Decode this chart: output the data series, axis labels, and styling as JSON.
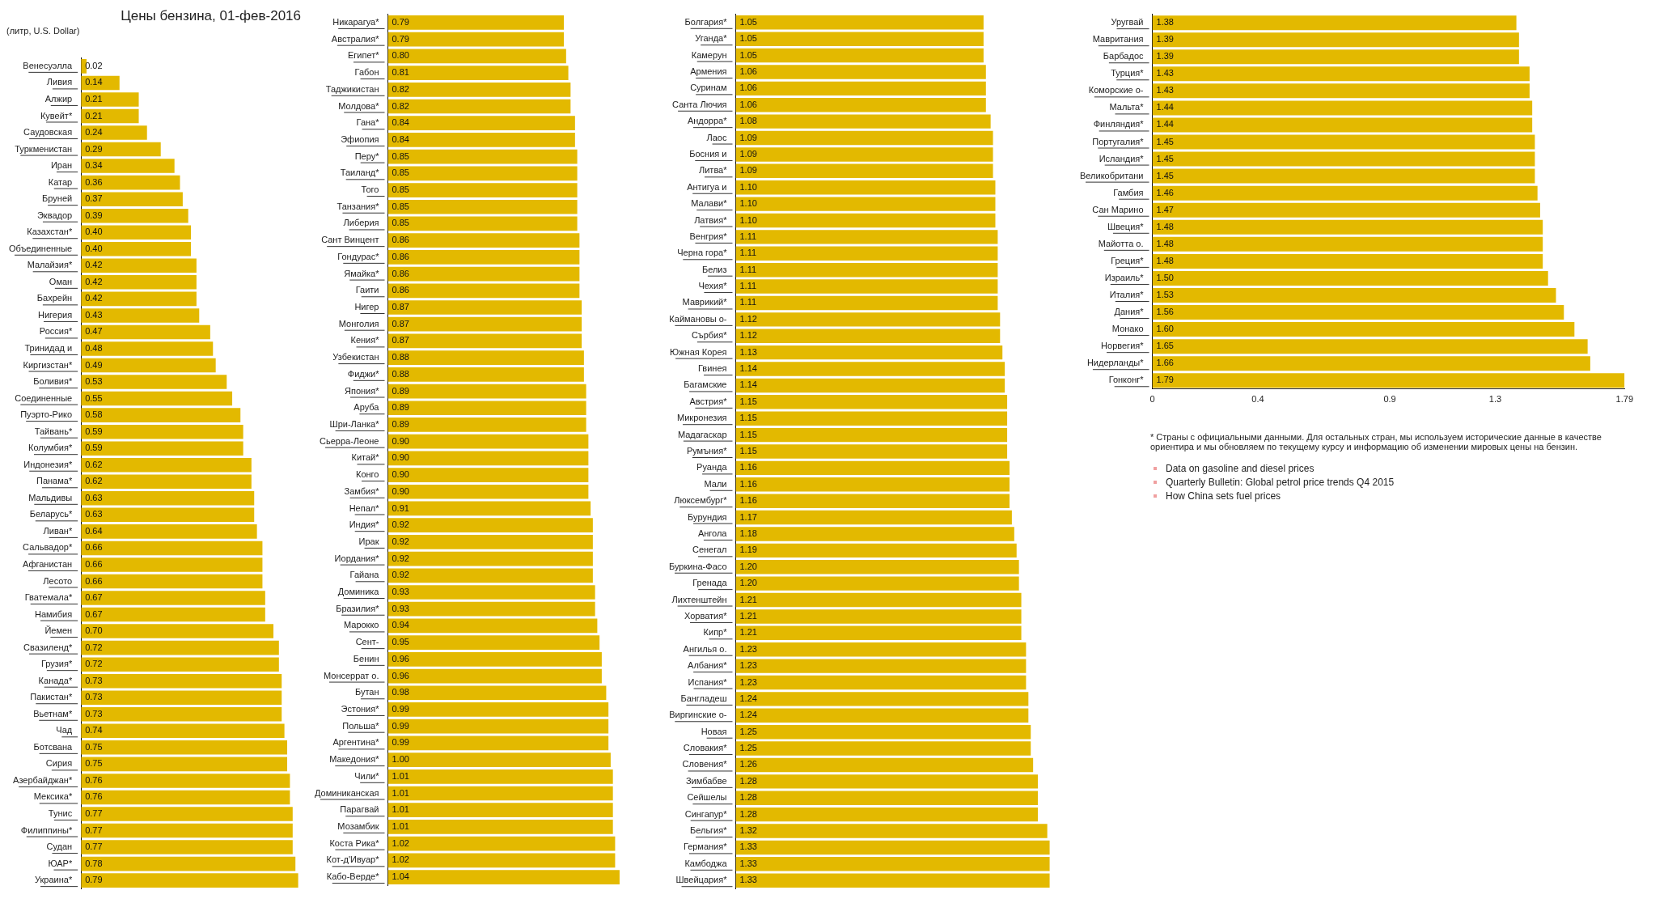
{
  "chart_data": [
    {
      "type": "bar",
      "orientation": "horizontal",
      "title": "Цены бензина, 01-фев-2016",
      "subtitle": "(литр, U.S. Dollar)",
      "color": "#e3b900",
      "tick_labels": "y",
      "categories": [
        "Венесуэлла",
        "Ливия",
        "Алжир",
        "Кувейт*",
        "Саудовская",
        "Туркменистан",
        "Иран",
        "Катар",
        "Бруней",
        "Эквадор",
        "Казахстан*",
        "Объединенные",
        "Малайзия*",
        "Оман",
        "Бахрейн",
        "Нигерия",
        "Россия*",
        "Тринидад и",
        "Киргизстан*",
        "Боливия*",
        "Соединенные",
        "Пуэрто-Рико",
        "Тайвань*",
        "Колумбия*",
        "Индонезия*",
        "Панама*",
        "Мальдивы",
        "Беларусь*",
        "Ливан*",
        "Сальвадор*",
        "Афганистан",
        "Лесото",
        "Гватемала*",
        "Намибия",
        "Йемен",
        "Свазиленд*",
        "Грузия*",
        "Канада*",
        "Пакистан*",
        "Вьетнам*",
        "Чад",
        "Ботсвана",
        "Сирия",
        "Азербайджан*",
        "Мексика*",
        "Тунис",
        "Филиппины*",
        "Судан",
        "ЮАР*",
        "Украина*"
      ],
      "values": [
        0.02,
        0.14,
        0.21,
        0.21,
        0.24,
        0.29,
        0.34,
        0.36,
        0.37,
        0.39,
        0.4,
        0.4,
        0.42,
        0.42,
        0.42,
        0.43,
        0.47,
        0.48,
        0.49,
        0.53,
        0.55,
        0.58,
        0.59,
        0.59,
        0.62,
        0.62,
        0.63,
        0.63,
        0.64,
        0.66,
        0.66,
        0.66,
        0.67,
        0.67,
        0.7,
        0.72,
        0.72,
        0.73,
        0.73,
        0.73,
        0.74,
        0.75,
        0.75,
        0.76,
        0.76,
        0.77,
        0.77,
        0.77,
        0.78,
        0.79
      ],
      "value_labels": [
        "0.02",
        "0.14",
        "0.21",
        "0.21",
        "0.24",
        "0.29",
        "0.34",
        "0.36",
        "0.37",
        "0.39",
        "0.40",
        "0.40",
        "0.42",
        "0.42",
        "0.42",
        "0.43",
        "0.47",
        "0.48",
        "0.49",
        "0.53",
        "0.55",
        "0.58",
        "0.59",
        "0.59",
        "0.62",
        "0.62",
        "0.63",
        "0.63",
        "0.64",
        "0.66",
        "0.66",
        "0.66",
        "0.67",
        "0.67",
        "0.70",
        "0.72",
        "0.72",
        "0.73",
        "0.73",
        "0.73",
        "0.74",
        "0.75",
        "0.75",
        "0.76",
        "0.76",
        "0.77",
        "0.77",
        "0.77",
        "0.78",
        "0.79"
      ]
    },
    {
      "type": "bar",
      "orientation": "horizontal",
      "color": "#e3b900",
      "tick_labels": "y",
      "categories": [
        "Никарагуа*",
        "Австралия*",
        "Египет*",
        "Габон",
        "Таджикистан",
        "Молдова*",
        "Гана*",
        "Эфиопия",
        "Перу*",
        "Таиланд*",
        "Того",
        "Танзания*",
        "Либерия",
        "Сант Винцент",
        "Гондурас*",
        "Ямайка*",
        "Гаити",
        "Нигер",
        "Монголия",
        "Кения*",
        "Узбекистан",
        "Фиджи*",
        "Япония*",
        "Аруба",
        "Шри-Ланка*",
        "Сьерра-Леоне",
        "Китай*",
        "Конго",
        "Замбия*",
        "Непал*",
        "Индия*",
        "Ирак",
        "Иордания*",
        "Гайана",
        "Доминика",
        "Бразилия*",
        "Марокко",
        "Сент-",
        "Бенин",
        "Монсеррат о.",
        "Бутан",
        "Эстония*",
        "Польша*",
        "Аргентина*",
        "Македония*",
        "Чили*",
        "Доминиканская",
        "Парагвай",
        "Мозамбик",
        "Коста Рика*",
        "Кот-д'Ивуар*",
        "Кабо-Верде*"
      ],
      "values": [
        0.79,
        0.79,
        0.8,
        0.81,
        0.82,
        0.82,
        0.84,
        0.84,
        0.85,
        0.85,
        0.85,
        0.85,
        0.85,
        0.86,
        0.86,
        0.86,
        0.86,
        0.87,
        0.87,
        0.87,
        0.88,
        0.88,
        0.89,
        0.89,
        0.89,
        0.9,
        0.9,
        0.9,
        0.9,
        0.91,
        0.92,
        0.92,
        0.92,
        0.92,
        0.93,
        0.93,
        0.94,
        0.95,
        0.96,
        0.96,
        0.98,
        0.99,
        0.99,
        0.99,
        1.0,
        1.01,
        1.01,
        1.01,
        1.01,
        1.02,
        1.02,
        1.04
      ],
      "value_labels": [
        "0.79",
        "0.79",
        "0.80",
        "0.81",
        "0.82",
        "0.82",
        "0.84",
        "0.84",
        "0.85",
        "0.85",
        "0.85",
        "0.85",
        "0.85",
        "0.86",
        "0.86",
        "0.86",
        "0.86",
        "0.87",
        "0.87",
        "0.87",
        "0.88",
        "0.88",
        "0.89",
        "0.89",
        "0.89",
        "0.90",
        "0.90",
        "0.90",
        "0.90",
        "0.91",
        "0.92",
        "0.92",
        "0.92",
        "0.92",
        "0.93",
        "0.93",
        "0.94",
        "0.95",
        "0.96",
        "0.96",
        "0.98",
        "0.99",
        "0.99",
        "0.99",
        "1.00",
        "1.01",
        "1.01",
        "1.01",
        "1.01",
        "1.02",
        "1.02",
        "1.04"
      ]
    },
    {
      "type": "bar",
      "orientation": "horizontal",
      "color": "#e3b900",
      "tick_labels": "y",
      "categories": [
        "Болгария*",
        "Уганда*",
        "Камерун",
        "Армения",
        "Суринам",
        "Санта Лючия",
        "Андорра*",
        "Лаос",
        "Босния и",
        "Литва*",
        "Антигуа и",
        "Малави*",
        "Латвия*",
        "Венгрия*",
        "Черна гора*",
        "Белиз",
        "Чехия*",
        "Маврикий*",
        "Каймановы о-",
        "Сърбия*",
        "Южная Корея",
        "Гвинея",
        "Багамские",
        "Австрия*",
        "Микронезия",
        "Мадагаскар",
        "Румъния*",
        "Руанда",
        "Мали",
        "Люксембург*",
        "Бурундия",
        "Ангола",
        "Сенегал",
        "Буркина-Фасо",
        "Гренада",
        "Лихтенштейн",
        "Хорватия*",
        "Кипр*",
        "Ангилья о.",
        "Албания*",
        "Испания*",
        "Бангладеш",
        "Виргинские о-",
        "Новая",
        "Словакия*",
        "Словения*",
        "Зимбабве",
        "Сейшелы",
        "Сингапур*",
        "Бельгия*",
        "Германия*",
        "Камбоджа",
        "Швейцария*"
      ],
      "values": [
        1.05,
        1.05,
        1.05,
        1.06,
        1.06,
        1.06,
        1.08,
        1.09,
        1.09,
        1.09,
        1.1,
        1.1,
        1.1,
        1.11,
        1.11,
        1.11,
        1.11,
        1.11,
        1.12,
        1.12,
        1.13,
        1.14,
        1.14,
        1.15,
        1.15,
        1.15,
        1.15,
        1.16,
        1.16,
        1.16,
        1.17,
        1.18,
        1.19,
        1.2,
        1.2,
        1.21,
        1.21,
        1.21,
        1.23,
        1.23,
        1.23,
        1.24,
        1.24,
        1.25,
        1.25,
        1.26,
        1.28,
        1.28,
        1.28,
        1.32,
        1.33,
        1.33,
        1.33
      ],
      "value_labels": [
        "1.05",
        "1.05",
        "1.05",
        "1.06",
        "1.06",
        "1.06",
        "1.08",
        "1.09",
        "1.09",
        "1.09",
        "1.10",
        "1.10",
        "1.10",
        "1.11",
        "1.11",
        "1.11",
        "1.11",
        "1.11",
        "1.12",
        "1.12",
        "1.13",
        "1.14",
        "1.14",
        "1.15",
        "1.15",
        "1.15",
        "1.15",
        "1.16",
        "1.16",
        "1.16",
        "1.17",
        "1.18",
        "1.19",
        "1.20",
        "1.20",
        "1.21",
        "1.21",
        "1.21",
        "1.23",
        "1.23",
        "1.23",
        "1.24",
        "1.24",
        "1.25",
        "1.25",
        "1.26",
        "1.28",
        "1.28",
        "1.28",
        "1.32",
        "1.33",
        "1.33",
        "1.33"
      ]
    },
    {
      "type": "bar",
      "orientation": "horizontal",
      "color": "#e3b900",
      "xlim": [
        0,
        1.79
      ],
      "xticks": [
        0,
        0.4,
        0.9,
        1.3,
        1.79
      ],
      "categories": [
        "Уругвай",
        "Мавритания",
        "Барбадос",
        "Турция*",
        "Коморские о-",
        "Мальта*",
        "Финляндия*",
        "Португалия*",
        "Исландия*",
        "Великобритани",
        "Гамбия",
        "Сан Марино",
        "Швеция*",
        "Майотта о.",
        "Греция*",
        "Израиль*",
        "Италия*",
        "Дания*",
        "Монако",
        "Норвегия*",
        "Нидерланды*",
        "Гонконг*"
      ],
      "values": [
        1.38,
        1.39,
        1.39,
        1.43,
        1.43,
        1.44,
        1.44,
        1.45,
        1.45,
        1.45,
        1.46,
        1.47,
        1.48,
        1.48,
        1.48,
        1.5,
        1.53,
        1.56,
        1.6,
        1.65,
        1.66,
        1.79
      ],
      "value_labels": [
        "1.38",
        "1.39",
        "1.39",
        "1.43",
        "1.43",
        "1.44",
        "1.44",
        "1.45",
        "1.45",
        "1.45",
        "1.46",
        "1.47",
        "1.48",
        "1.48",
        "1.48",
        "1.50",
        "1.53",
        "1.56",
        "1.60",
        "1.65",
        "1.66",
        "1.79"
      ],
      "annotations": [
        "* Страны с официальными данными. Для остальных стран, мы используем исторические данные в качестве ориентира и мы обновляем по текущему курсу и информацию об изменении мировых цены на бензин.",
        "Data on gasoline and diesel prices",
        "Quarterly Bulletin: Global petrol price trends Q4 2015",
        "How China sets fuel prices"
      ]
    }
  ]
}
